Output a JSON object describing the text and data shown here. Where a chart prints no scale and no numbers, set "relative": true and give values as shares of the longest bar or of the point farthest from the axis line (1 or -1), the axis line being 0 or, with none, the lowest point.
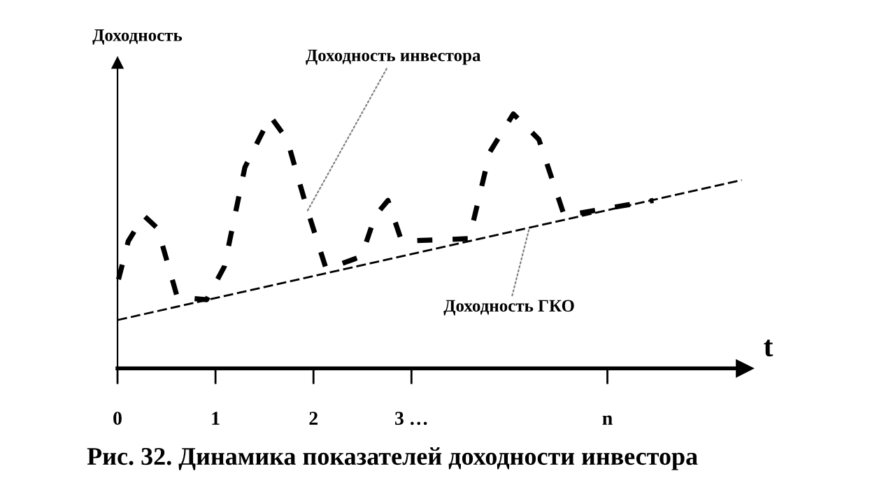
{
  "chart_data": {
    "type": "line",
    "relative": true,
    "title": "Рис. 32. Динамика показателей доходности инвестора",
    "xlabel": "t",
    "ylabel": "Доходность",
    "xlim": [
      0,
      6.4
    ],
    "xticks": [
      0,
      1,
      2,
      {
        "value": 3,
        "label": "3 …"
      },
      {
        "value": 5,
        "label": "n"
      }
    ],
    "grid": false,
    "marker": "none",
    "series": [
      {
        "name": "Доходность инвестора",
        "color": "#000000",
        "line_style": "dashed",
        "x": [
          0.01,
          0.11,
          0.27,
          0.41,
          0.61,
          0.91,
          1.09,
          1.3,
          1.56,
          1.73,
          1.94,
          2.13,
          2.49,
          2.63,
          2.76,
          2.9,
          3.59,
          3.8,
          4.04,
          4.3,
          4.56,
          5.47
        ],
        "values": [
          0.35,
          0.5,
          0.6,
          0.55,
          0.28,
          0.27,
          0.4,
          0.79,
          0.99,
          0.9,
          0.62,
          0.39,
          0.44,
          0.6,
          0.66,
          0.5,
          0.51,
          0.85,
          1.0,
          0.9,
          0.6,
          0.66
        ]
      },
      {
        "name": "Доходность ГКО",
        "color": "#000000",
        "line_style": "dashed",
        "x": [
          0,
          6.37
        ],
        "values": [
          0.19,
          0.74
        ]
      }
    ]
  }
}
